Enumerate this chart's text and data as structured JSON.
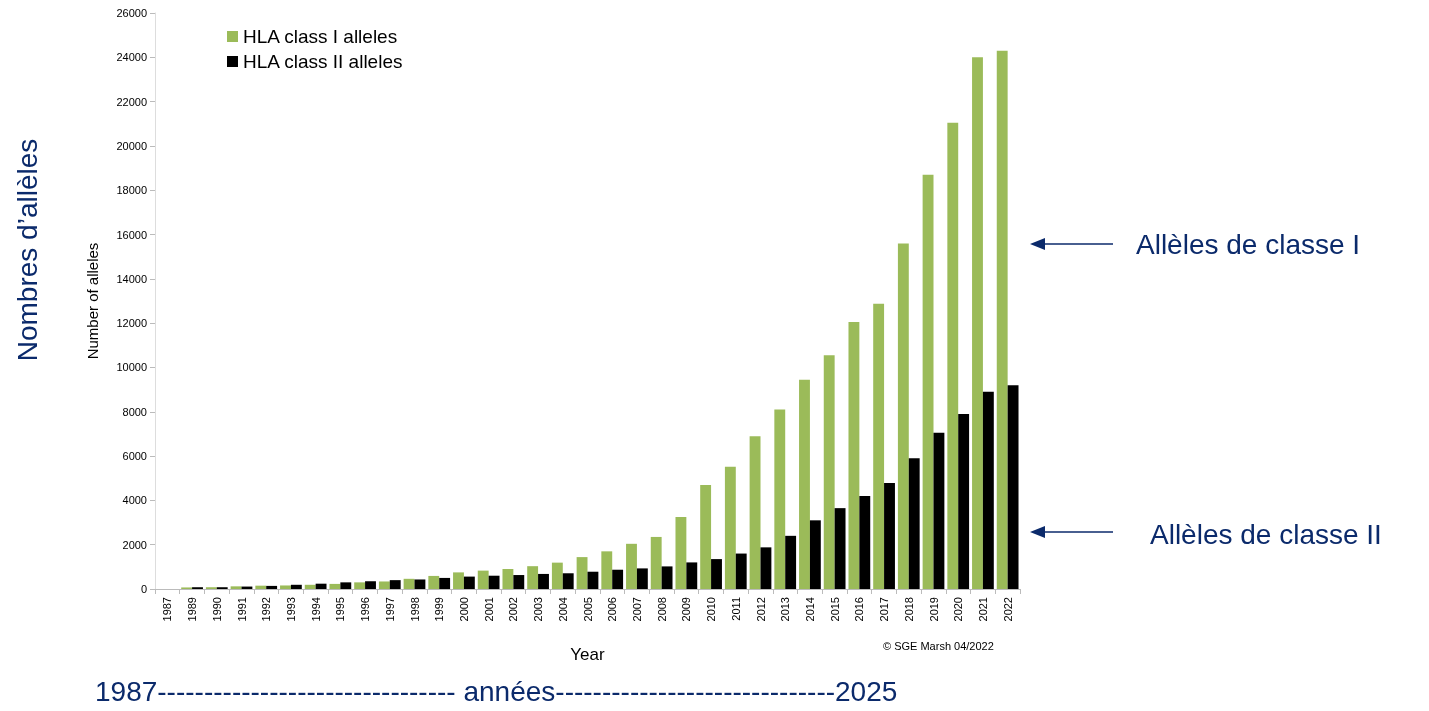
{
  "chart_data": {
    "type": "bar",
    "xlabel": "Year",
    "ylabel": "Number of alleles",
    "categories": [
      "1987",
      "1989",
      "1990",
      "1991",
      "1992",
      "1993",
      "1994",
      "1995",
      "1996",
      "1997",
      "1998",
      "1999",
      "2000",
      "2001",
      "2002",
      "2003",
      "2004",
      "2005",
      "2006",
      "2007",
      "2008",
      "2009",
      "2010",
      "2011",
      "2012",
      "2013",
      "2014",
      "2015",
      "2016",
      "2017",
      "2018",
      "2019",
      "2020",
      "2021",
      "2022"
    ],
    "series": [
      {
        "name": "HLA class I alleles",
        "color": "#9bbb59",
        "values": [
          null,
          70,
          80,
          120,
          150,
          160,
          190,
          230,
          300,
          340,
          460,
          590,
          750,
          830,
          900,
          1030,
          1190,
          1440,
          1700,
          2040,
          2350,
          3250,
          4700,
          5520,
          6900,
          8100,
          9450,
          10550,
          12050,
          12880,
          15600,
          18700,
          21050,
          24000,
          24300
        ]
      },
      {
        "name": "HLA class II alleles",
        "color": "#000000",
        "values": [
          null,
          80,
          80,
          110,
          140,
          190,
          240,
          300,
          350,
          400,
          430,
          500,
          560,
          600,
          630,
          680,
          710,
          780,
          870,
          930,
          1020,
          1200,
          1350,
          1600,
          1880,
          2400,
          3100,
          3650,
          4200,
          4780,
          5900,
          7050,
          7900,
          8900,
          9200
        ]
      }
    ],
    "ylim": [
      0,
      26000
    ],
    "yticks": [
      0,
      2000,
      4000,
      6000,
      8000,
      10000,
      12000,
      14000,
      16000,
      18000,
      20000,
      22000,
      24000,
      26000
    ],
    "grid": false,
    "legend": "top left",
    "annotations": [
      "© SGE Marsh 04/2022",
      "Nombres d’allèles",
      "1987-------------------------------- années------------------------------2025",
      "Allèles de classe I",
      "Allèles de classe II"
    ]
  }
}
